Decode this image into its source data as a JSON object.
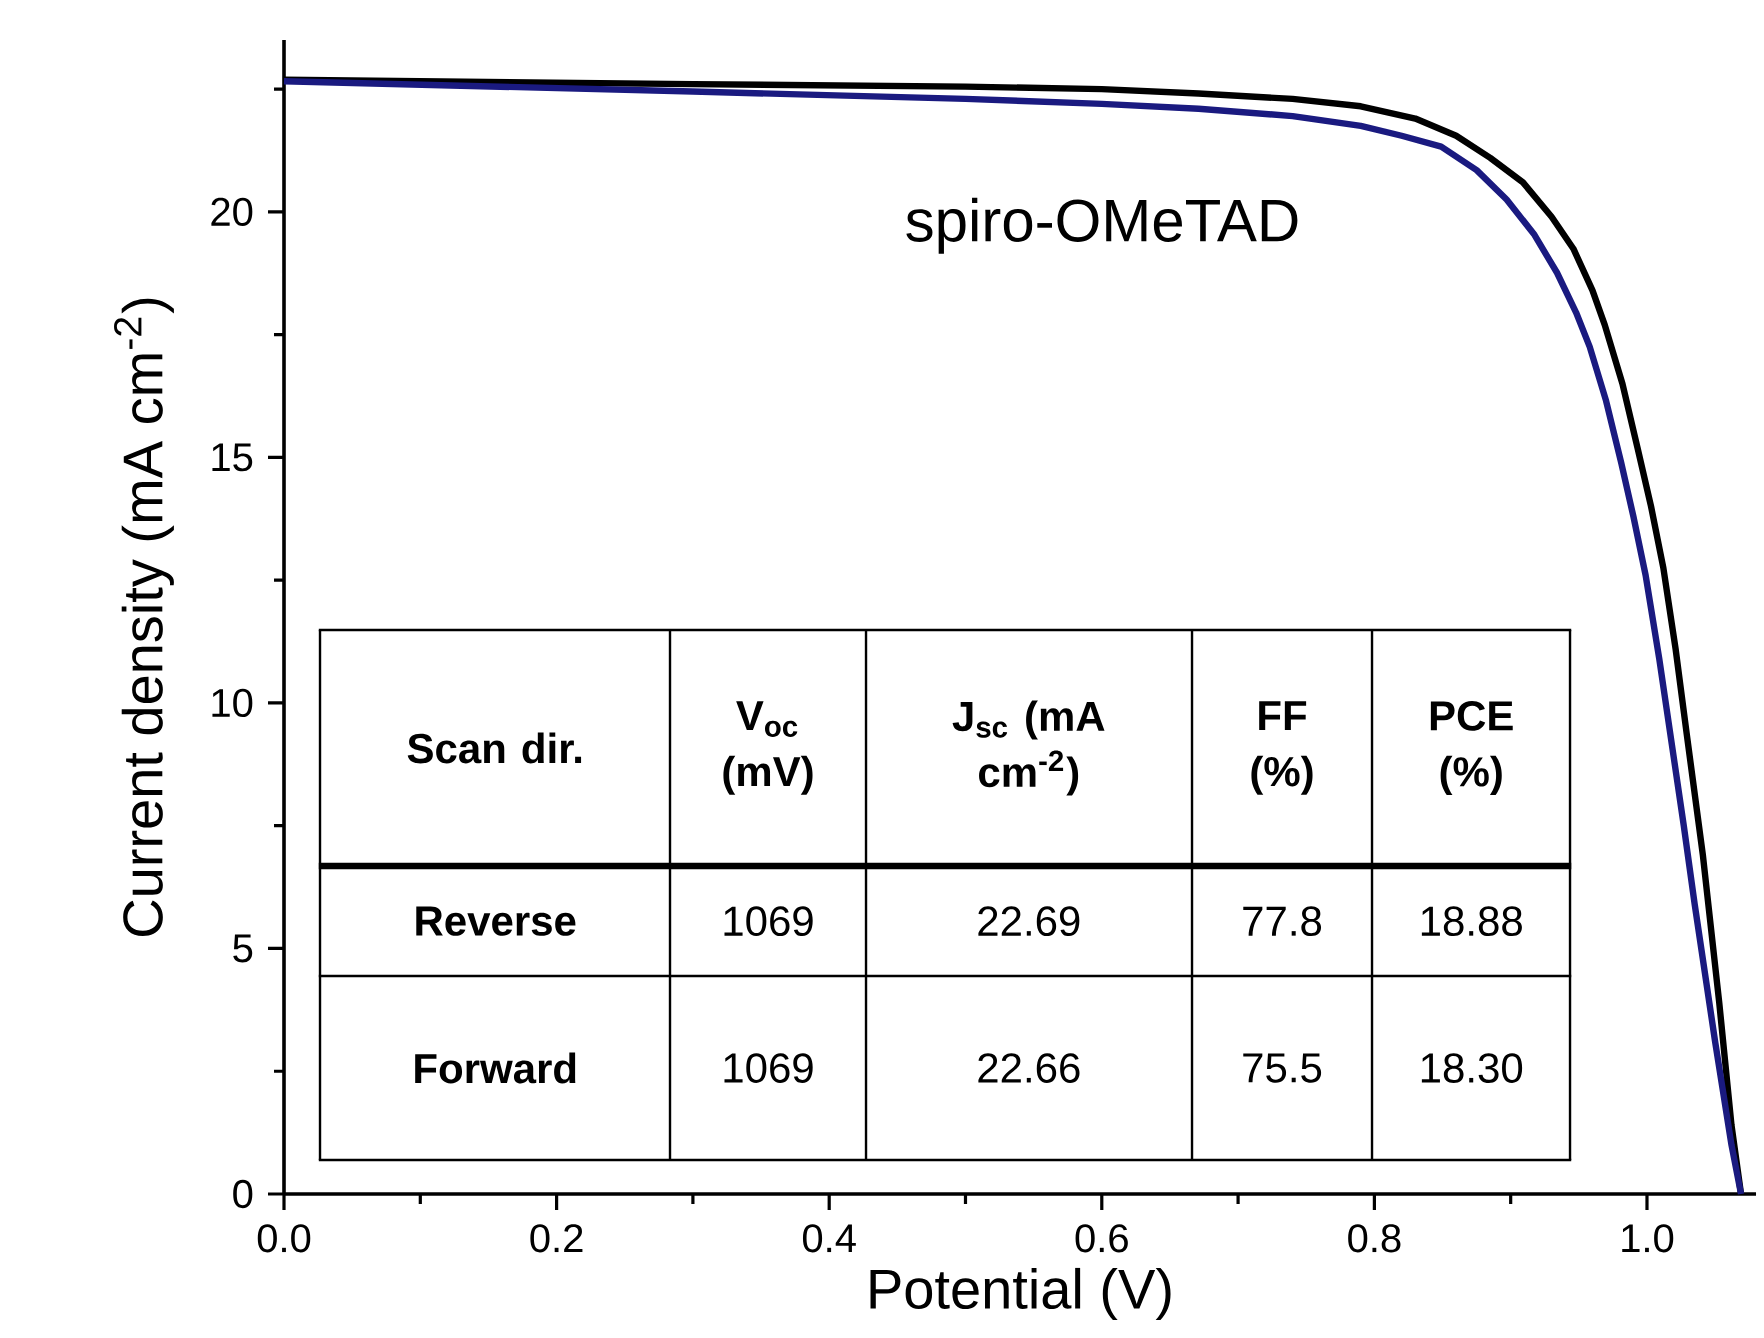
{
  "chart_data": {
    "type": "line",
    "xlabel": "Potential (V)",
    "ylabel": "Current density (mA cm$^{-2}$)",
    "xlim": [
      0,
      1.08
    ],
    "ylim": [
      0,
      23.5
    ],
    "xticks": [
      {
        "value": 0,
        "label": "0.0"
      },
      {
        "value": 0.1,
        "label": null
      },
      {
        "value": 0.2,
        "label": "0.2"
      },
      {
        "value": 0.3,
        "label": null
      },
      {
        "value": 0.4,
        "label": "0.4"
      },
      {
        "value": 0.5,
        "label": null
      },
      {
        "value": 0.6,
        "label": "0.6"
      },
      {
        "value": 0.7,
        "label": null
      },
      {
        "value": 0.8,
        "label": "0.8"
      },
      {
        "value": 0.9,
        "label": null
      },
      {
        "value": 1.0,
        "label": "1.0"
      }
    ],
    "yticks": [
      0,
      {
        "value": 2.5,
        "label": null
      },
      5,
      {
        "value": 7.5,
        "label": null
      },
      10,
      {
        "value": 12.5,
        "label": null
      },
      15,
      {
        "value": 17.5,
        "label": null
      },
      20,
      {
        "value": 22.5,
        "label": null
      }
    ],
    "grid": false,
    "marker": "none",
    "line_style": "solid",
    "series": [
      {
        "color": "#000000",
        "x": [
          0,
          0.3,
          0.5,
          0.6,
          0.671,
          0.74,
          0.79,
          0.83,
          0.86,
          0.885,
          0.909,
          0.93,
          0.946,
          0.96,
          0.969,
          0.982,
          0.993,
          1.003,
          1.012,
          1.021,
          1.029,
          1.041,
          1.053,
          1.062,
          1.069
        ],
        "values": [
          22.69,
          22.6,
          22.55,
          22.5,
          22.41,
          22.3,
          22.15,
          21.9,
          21.55,
          21.1,
          20.6,
          19.9,
          19.25,
          18.4,
          17.7,
          16.5,
          15.2,
          14.0,
          12.75,
          11.1,
          9.4,
          6.9,
          3.9,
          1.4,
          0
        ]
      },
      {
        "color": "#1a1a80",
        "x": [
          0,
          0.3,
          0.5,
          0.6,
          0.671,
          0.74,
          0.79,
          0.82,
          0.849,
          0.875,
          0.897,
          0.917,
          0.934,
          0.948,
          0.958,
          0.97,
          0.981,
          0.99,
          0.999,
          1.009,
          1.018,
          1.027,
          1.035,
          1.05,
          1.062,
          1.069
        ],
        "values": [
          22.66,
          22.45,
          22.3,
          22.2,
          22.1,
          21.95,
          21.75,
          21.55,
          21.33,
          20.85,
          20.25,
          19.55,
          18.76,
          17.95,
          17.25,
          16.15,
          14.9,
          13.8,
          12.6,
          10.9,
          9.2,
          7.5,
          5.9,
          3.1,
          1.0,
          0
        ]
      }
    ],
    "annotations": [
      "spiro-OMeTAD",
      "Scan dir.",
      "V$_{oc}$ (mV)",
      "J$_{sc}$ (mA cm$^{-2}$)",
      "FF (%)",
      "PCE (%)",
      "Reverse",
      "1069",
      "22.69",
      "77.8",
      "18.88",
      "Forward",
      "1069",
      "22.66",
      "75.5",
      "18.30"
    ]
  }
}
